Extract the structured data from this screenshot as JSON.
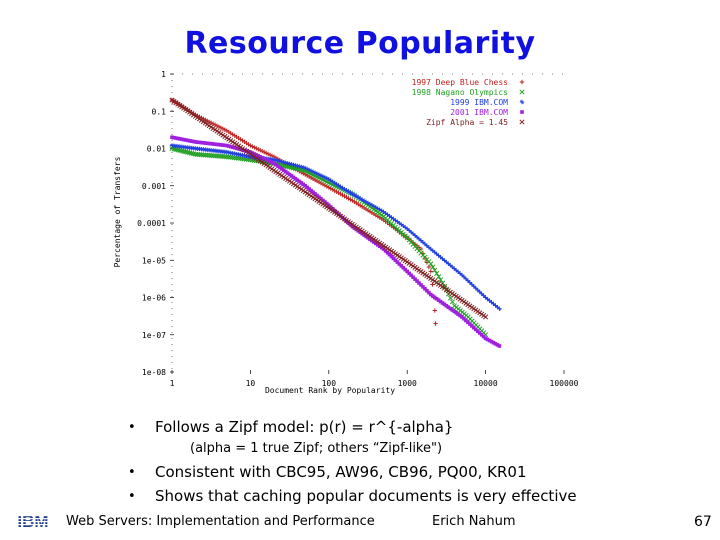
{
  "slide": {
    "title": "Resource Popularity",
    "bullets": [
      "Follows a Zipf model: p(r) = r^{-alpha}",
      "Consistent with CBC95, AW96, CB96, PQ00, KR01",
      "Shows that caching popular documents is very effective"
    ],
    "sub_bullet": "(alpha = 1 true Zipf; others “Zipf-like\")",
    "bullet_marker": "•"
  },
  "footer": {
    "logo_text": "IBM",
    "course": "Web Servers: Implementation and Performance",
    "author": "Erich Nahum",
    "page_number": "67"
  },
  "chart_data": {
    "type": "scatter",
    "xlabel": "Document Rank by Popularity",
    "ylabel": "Percentage of Transfers",
    "x_scale": "log",
    "y_scale": "log",
    "xlim": [
      1,
      100000
    ],
    "ylim": [
      1e-08,
      1
    ],
    "x_ticks": [
      "1",
      "10",
      "100",
      "1000",
      "10000",
      "100000"
    ],
    "y_ticks": [
      "1",
      "0.1",
      "0.01",
      "0.001",
      "0.0001",
      "1e-05",
      "1e-06",
      "1e-07",
      "1e-08"
    ],
    "legend_position": "top-right",
    "series": [
      {
        "name": "1997 Deep Blue Chess",
        "marker": "+",
        "color": "#c02020",
        "points": [
          [
            1,
            0.2
          ],
          [
            2,
            0.08
          ],
          [
            5,
            0.03
          ],
          [
            10,
            0.012
          ],
          [
            20,
            0.006
          ],
          [
            50,
            0.002
          ],
          [
            100,
            0.0009
          ],
          [
            200,
            0.0004
          ],
          [
            500,
            0.00012
          ],
          [
            1000,
            4e-05
          ],
          [
            1500,
            2e-05
          ],
          [
            2000,
            5e-06
          ],
          [
            2200,
            1e-06
          ],
          [
            2300,
            2e-07
          ]
        ]
      },
      {
        "name": "1998 Nagano Olympics",
        "marker": "x",
        "color": "#20a020",
        "points": [
          [
            1,
            0.01
          ],
          [
            2,
            0.007
          ],
          [
            5,
            0.006
          ],
          [
            10,
            0.005
          ],
          [
            20,
            0.004
          ],
          [
            50,
            0.0025
          ],
          [
            100,
            0.0012
          ],
          [
            200,
            0.0006
          ],
          [
            500,
            0.00015
          ],
          [
            1000,
            4e-05
          ],
          [
            2000,
            8e-06
          ],
          [
            3000,
            2e-06
          ],
          [
            4000,
            6e-07
          ],
          [
            6000,
            3e-07
          ],
          [
            10000,
            1e-07
          ]
        ]
      },
      {
        "name": "1999 IBM.COM",
        "marker": "*",
        "color": "#2040e0",
        "points": [
          [
            1,
            0.012
          ],
          [
            2,
            0.01
          ],
          [
            5,
            0.008
          ],
          [
            10,
            0.006
          ],
          [
            20,
            0.005
          ],
          [
            50,
            0.003
          ],
          [
            100,
            0.0015
          ],
          [
            200,
            0.0006
          ],
          [
            500,
            0.0002
          ],
          [
            1000,
            7e-05
          ],
          [
            2000,
            2e-05
          ],
          [
            5000,
            4e-06
          ],
          [
            10000,
            1e-06
          ],
          [
            15000,
            5e-07
          ]
        ]
      },
      {
        "name": "2001 IBM.COM",
        "marker": "square",
        "color": "#a020e0",
        "points": [
          [
            1,
            0.02
          ],
          [
            2,
            0.015
          ],
          [
            5,
            0.012
          ],
          [
            10,
            0.008
          ],
          [
            20,
            0.004
          ],
          [
            50,
            0.001
          ],
          [
            100,
            0.0003
          ],
          [
            200,
            8e-05
          ],
          [
            500,
            2e-05
          ],
          [
            1000,
            5e-06
          ],
          [
            2000,
            1.2e-06
          ],
          [
            5000,
            3e-07
          ],
          [
            10000,
            8e-08
          ],
          [
            15000,
            5e-08
          ]
        ]
      },
      {
        "name": "Zipf Alpha = 1.45",
        "marker": "x",
        "color": "#802020",
        "points": [
          [
            1,
            0.2
          ],
          [
            10,
            0.0071
          ],
          [
            100,
            0.00025
          ],
          [
            1000,
            9e-06
          ],
          [
            10000,
            3e-07
          ]
        ]
      }
    ]
  }
}
